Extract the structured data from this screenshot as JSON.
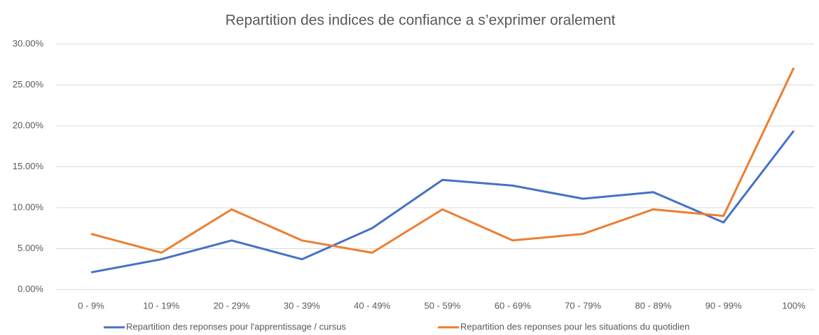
{
  "chart_data": {
    "type": "line",
    "title": "Repartition des indices de confiance a s’exprimer oralement",
    "categories": [
      "0 - 9%",
      "10 - 19%",
      "20 - 29%",
      "30 - 39%",
      "40 - 49%",
      "50 - 59%",
      "60 - 69%",
      "70 - 79%",
      "80 - 89%",
      "90 - 99%",
      "100%"
    ],
    "series": [
      {
        "name": "Repartition des reponses pour l'apprentissage / cursus",
        "color": "#4472c4",
        "values": [
          2.1,
          3.7,
          6.0,
          3.7,
          7.5,
          13.4,
          12.7,
          11.1,
          11.9,
          8.2,
          19.4
        ]
      },
      {
        "name": "Repartition des reponses pour les situations du quotidien",
        "color": "#ed7d31",
        "values": [
          6.8,
          4.5,
          9.8,
          6.0,
          4.5,
          9.8,
          6.0,
          6.8,
          9.8,
          9.0,
          27.1
        ]
      }
    ],
    "ylim": [
      0,
      30
    ],
    "yticks": [
      {
        "value": 0,
        "label": "0.00%"
      },
      {
        "value": 5,
        "label": "5.00%"
      },
      {
        "value": 10,
        "label": "10.00%"
      },
      {
        "value": 15,
        "label": "15.00%"
      },
      {
        "value": 20,
        "label": "20.00%"
      },
      {
        "value": 25,
        "label": "25.00%"
      },
      {
        "value": 30,
        "label": "30.00%"
      }
    ],
    "grid": true,
    "legend": "bottom"
  }
}
